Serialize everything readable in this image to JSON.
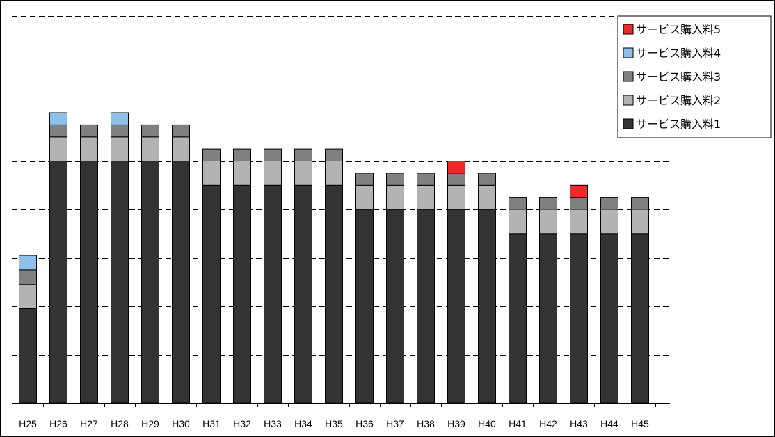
{
  "chart_data": {
    "type": "bar",
    "stacked": true,
    "categories": [
      "H25",
      "H26",
      "H27",
      "H28",
      "H29",
      "H30",
      "H31",
      "H32",
      "H33",
      "H34",
      "H35",
      "H36",
      "H37",
      "H38",
      "H39",
      "H40",
      "H41",
      "H42",
      "H43",
      "H44",
      "H45"
    ],
    "series": [
      {
        "name": "サービス購入料1",
        "color": "#333333",
        "values": [
          3.9,
          10.0,
          10.0,
          10.0,
          10.0,
          10.0,
          9.0,
          9.0,
          9.0,
          9.0,
          9.0,
          8.0,
          8.0,
          8.0,
          8.0,
          8.0,
          7.0,
          7.0,
          7.0,
          7.0,
          7.0
        ]
      },
      {
        "name": "サービス購入料2",
        "color": "#b3b3b3",
        "values": [
          1.0,
          1.0,
          1.0,
          1.0,
          1.0,
          1.0,
          1.0,
          1.0,
          1.0,
          1.0,
          1.0,
          1.0,
          1.0,
          1.0,
          1.0,
          1.0,
          1.0,
          1.0,
          1.0,
          1.0,
          1.0
        ]
      },
      {
        "name": "サービス購入料3",
        "color": "#808080",
        "values": [
          0.6,
          0.5,
          0.5,
          0.5,
          0.5,
          0.5,
          0.5,
          0.5,
          0.5,
          0.5,
          0.5,
          0.5,
          0.5,
          0.5,
          0.5,
          0.5,
          0.5,
          0.5,
          0.5,
          0.5,
          0.5
        ]
      },
      {
        "name": "サービス購入料4",
        "color": "#8dc0ea",
        "values": [
          0.6,
          0.5,
          0,
          0.5,
          0,
          0,
          0,
          0,
          0,
          0,
          0,
          0,
          0,
          0,
          0,
          0,
          0,
          0,
          0,
          0,
          0
        ]
      },
      {
        "name": "サービス購入料5",
        "color": "#ee2a2a",
        "values": [
          0,
          0,
          0,
          0,
          0,
          0,
          0,
          0,
          0,
          0,
          0,
          0,
          0,
          0,
          0.5,
          0,
          0,
          0,
          0.5,
          0,
          0
        ]
      }
    ],
    "ylim": [
      0,
      16
    ],
    "grid": "horizontal dashed",
    "legend_position": "top-right",
    "legend_order": [
      4,
      3,
      2,
      1,
      0
    ],
    "title": "",
    "xlabel": "",
    "ylabel": ""
  }
}
